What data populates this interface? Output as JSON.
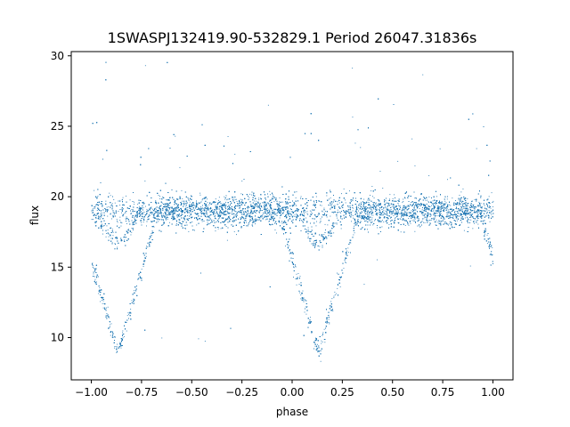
{
  "chart_data": {
    "type": "scatter",
    "title": "1SWASPJ132419.90-532829.1 Period 26047.31836s",
    "xlabel": "phase",
    "ylabel": "flux",
    "xlim": [
      -1.1,
      1.1
    ],
    "ylim": [
      7,
      30.3
    ],
    "xticks": [
      -1.0,
      -0.75,
      -0.5,
      -0.25,
      0.0,
      0.25,
      0.5,
      0.75,
      1.0
    ],
    "xtick_labels": [
      "−1.00",
      "−0.75",
      "−0.50",
      "−0.25",
      "0.00",
      "0.25",
      "0.50",
      "0.75",
      "1.00"
    ],
    "yticks": [
      10,
      15,
      20,
      25,
      30
    ],
    "ytick_labels": [
      "10",
      "15",
      "20",
      "25",
      "30"
    ],
    "grid": false,
    "point_color": "#1f77b4",
    "series": [
      {
        "x_range": [
          -1.0,
          1.0
        ],
        "baseline_flux": 19.0,
        "primary_minima": [
          {
            "x": -0.87,
            "flux": 8.9
          },
          {
            "x": 0.13,
            "flux": 8.9
          }
        ],
        "secondary_minima": [
          {
            "x": -0.87,
            "flux": 16.8
          },
          {
            "x": 0.13,
            "flux": 16.8
          }
        ]
      }
    ]
  }
}
